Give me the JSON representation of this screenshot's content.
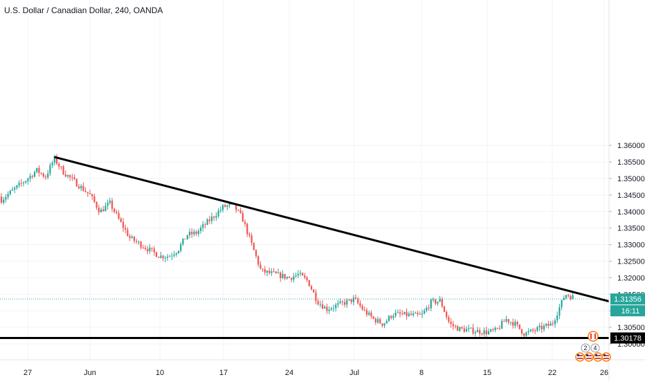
{
  "header": {
    "title": "U.S. Dollar / Canadian Dollar, 240, OANDA"
  },
  "colors": {
    "up": "#26a69a",
    "down": "#ef5350",
    "line": "#000000",
    "badge": "#26a69a",
    "badge_dark": "#000000"
  },
  "badges": {
    "last_price": "1.31356",
    "countdown": "16:11",
    "support_value": "1.30178"
  },
  "chart_data": {
    "type": "candlestick",
    "title": "U.S. Dollar / Canadian Dollar, 240, OANDA",
    "ylim": [
      1.296,
      1.362
    ],
    "y_ticks": [
      "1.36000",
      "1.35500",
      "1.35000",
      "1.34500",
      "1.34000",
      "1.33500",
      "1.33000",
      "1.32500",
      "1.32000",
      "1.31500",
      "1.31000",
      "1.30500",
      "1.30000"
    ],
    "x_ticks": [
      "27",
      "Jun",
      "10",
      "17",
      "24",
      "Jul",
      "8",
      "15",
      "22",
      "26"
    ],
    "last_price": 1.31356,
    "support_level": 1.30178,
    "resistance_trendline": [
      {
        "date": "May 30",
        "value": 1.3565
      },
      {
        "date": "Jun 18",
        "value": 1.3434
      },
      {
        "date": "Jul 23",
        "value": 1.3163
      }
    ],
    "price_path": [
      {
        "date": "May 21",
        "value": 1.3445
      },
      {
        "date": "May 22",
        "value": 1.348
      },
      {
        "date": "May 23",
        "value": 1.3445
      },
      {
        "date": "May 24",
        "value": 1.3435
      },
      {
        "date": "May 27",
        "value": 1.35
      },
      {
        "date": "May 28",
        "value": 1.3525
      },
      {
        "date": "May 29",
        "value": 1.3505
      },
      {
        "date": "May 30",
        "value": 1.356
      },
      {
        "date": "May 31",
        "value": 1.352
      },
      {
        "date": "Jun 3",
        "value": 1.345
      },
      {
        "date": "Jun 4",
        "value": 1.34
      },
      {
        "date": "Jun 5",
        "value": 1.3425
      },
      {
        "date": "Jun 6",
        "value": 1.337
      },
      {
        "date": "Jun 7",
        "value": 1.332
      },
      {
        "date": "Jun 10",
        "value": 1.3265
      },
      {
        "date": "Jun 11",
        "value": 1.3265
      },
      {
        "date": "Jun 12",
        "value": 1.3285
      },
      {
        "date": "Jun 13",
        "value": 1.333
      },
      {
        "date": "Jun 14",
        "value": 1.3335
      },
      {
        "date": "Jun 17",
        "value": 1.3415
      },
      {
        "date": "Jun 18",
        "value": 1.342
      },
      {
        "date": "Jun 19",
        "value": 1.338
      },
      {
        "date": "Jun 20",
        "value": 1.33
      },
      {
        "date": "Jun 21",
        "value": 1.322
      },
      {
        "date": "Jun 24",
        "value": 1.32
      },
      {
        "date": "Jun 25",
        "value": 1.321
      },
      {
        "date": "Jun 26",
        "value": 1.319
      },
      {
        "date": "Jun 27",
        "value": 1.313
      },
      {
        "date": "Jun 28",
        "value": 1.3105
      },
      {
        "date": "Jul 1",
        "value": 1.3135
      },
      {
        "date": "Jul 2",
        "value": 1.31
      },
      {
        "date": "Jul 3",
        "value": 1.3075
      },
      {
        "date": "Jul 4",
        "value": 1.306
      },
      {
        "date": "Jul 5",
        "value": 1.309
      },
      {
        "date": "Jul 8",
        "value": 1.3085
      },
      {
        "date": "Jul 9",
        "value": 1.3125
      },
      {
        "date": "Jul 10",
        "value": 1.313
      },
      {
        "date": "Jul 11",
        "value": 1.306
      },
      {
        "date": "Jul 12",
        "value": 1.3045
      },
      {
        "date": "Jul 15",
        "value": 1.3035
      },
      {
        "date": "Jul 16",
        "value": 1.304
      },
      {
        "date": "Jul 17",
        "value": 1.3075
      },
      {
        "date": "Jul 18",
        "value": 1.306
      },
      {
        "date": "Jul 19",
        "value": 1.303
      },
      {
        "date": "Jul 22",
        "value": 1.306
      },
      {
        "date": "Jul 23",
        "value": 1.315
      },
      {
        "date": "Jul 24",
        "value": 1.3136
      }
    ]
  },
  "indicators": {
    "flag_icon": "canada-flag-icon",
    "event_counts": [
      "2",
      "4"
    ]
  }
}
